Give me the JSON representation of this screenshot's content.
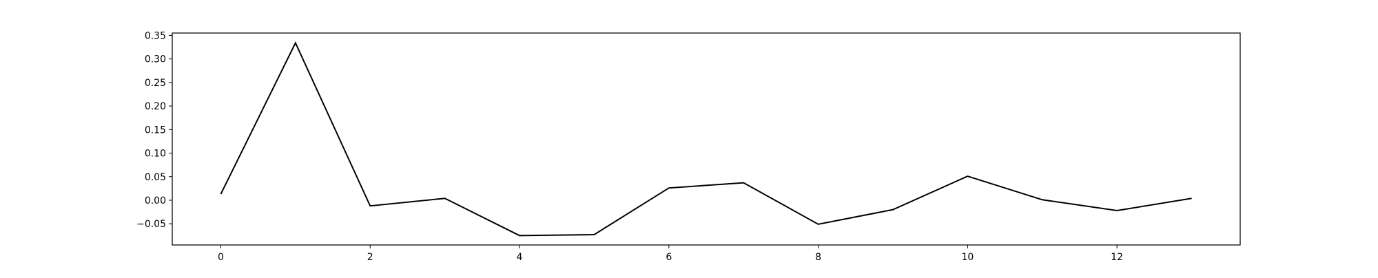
{
  "chart_data": {
    "type": "line",
    "title": "",
    "xlabel": "",
    "ylabel": "",
    "x": [
      0,
      1,
      2,
      3,
      4,
      5,
      6,
      7,
      8,
      9,
      10,
      11,
      12,
      13
    ],
    "series": [
      {
        "values": [
          0.013,
          0.334,
          -0.012,
          0.004,
          -0.075,
          -0.073,
          0.026,
          0.037,
          -0.051,
          -0.02,
          0.051,
          0.001,
          -0.022,
          0.004
        ],
        "color": "#000000"
      }
    ],
    "xlim": [
      -0.65,
      13.65
    ],
    "ylim": [
      -0.095,
      0.355
    ],
    "xticks": [
      0,
      2,
      4,
      6,
      8,
      10,
      12
    ],
    "xtick_labels": [
      "0",
      "2",
      "4",
      "6",
      "8",
      "10",
      "12"
    ],
    "yticks": [
      -0.05,
      0.0,
      0.05,
      0.1,
      0.15,
      0.2,
      0.25,
      0.3,
      0.35
    ],
    "ytick_labels": [
      "−0.05",
      "0.00",
      "0.05",
      "0.10",
      "0.15",
      "0.20",
      "0.25",
      "0.30",
      "0.35"
    ],
    "grid": false,
    "legend": "none"
  }
}
